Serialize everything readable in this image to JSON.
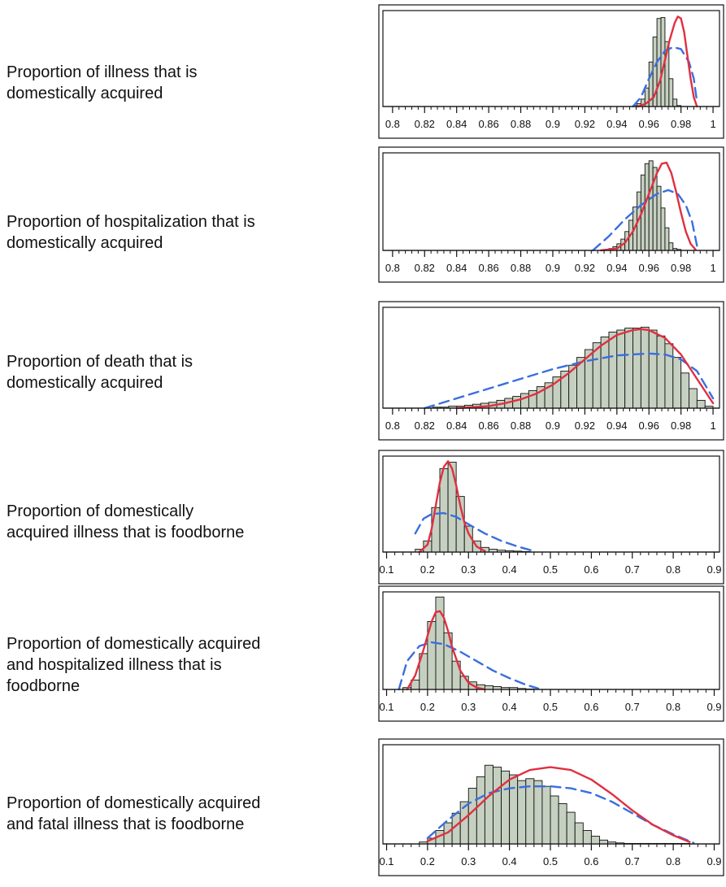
{
  "colors": {
    "bar_fill": "#c6d0c0",
    "bar_stroke": "#111111",
    "fit_curve": "#e03040",
    "dashed_curve": "#3a6ee0",
    "frame": "#111111"
  },
  "chart_data": [
    {
      "type": "bar",
      "label_lines": [
        "Proportion of illness that is",
        "domestically acquired"
      ],
      "xlim": [
        0.795,
        1.002
      ],
      "ymax": 1.0,
      "ticks": [
        "0.8",
        "0.82",
        "0.84",
        "0.86",
        "0.88",
        "0.9",
        "0.92",
        "0.94",
        "0.96",
        "0.98",
        "1"
      ],
      "tick_values": [
        0.8,
        0.82,
        0.84,
        0.86,
        0.88,
        0.9,
        0.92,
        0.94,
        0.96,
        0.98,
        1.0
      ],
      "bins": {
        "start": 0.95,
        "width": 0.0025,
        "heights": [
          0.01,
          0.03,
          0.08,
          0.2,
          0.48,
          0.75,
          0.95,
          0.96,
          0.7,
          0.3,
          0.08,
          0.01
        ]
      },
      "red_curve": {
        "x": [
          0.953,
          0.958,
          0.963,
          0.967,
          0.97,
          0.973,
          0.976,
          0.978,
          0.98,
          0.982,
          0.984,
          0.986,
          0.988,
          0.99
        ],
        "y": [
          0.0,
          0.03,
          0.1,
          0.28,
          0.5,
          0.72,
          0.9,
          0.97,
          0.95,
          0.8,
          0.55,
          0.3,
          0.1,
          0.0
        ]
      },
      "blue_curve": {
        "x": [
          0.95,
          0.955,
          0.96,
          0.965,
          0.97,
          0.975,
          0.98,
          0.985,
          0.988,
          0.99
        ],
        "y": [
          0.0,
          0.1,
          0.3,
          0.48,
          0.6,
          0.64,
          0.62,
          0.48,
          0.3,
          0.05
        ]
      }
    },
    {
      "type": "bar",
      "label_lines": [
        "Proportion of hospitalization that is",
        "domestically acquired"
      ],
      "xlim": [
        0.795,
        1.002
      ],
      "ymax": 1.0,
      "ticks": [
        "0.8",
        "0.82",
        "0.84",
        "0.86",
        "0.88",
        "0.9",
        "0.92",
        "0.94",
        "0.96",
        "0.98",
        "1"
      ],
      "tick_values": [
        0.8,
        0.82,
        0.84,
        0.86,
        0.88,
        0.9,
        0.92,
        0.94,
        0.96,
        0.98,
        1.0
      ],
      "bins": {
        "start": 0.93,
        "width": 0.0025,
        "heights": [
          0.005,
          0.01,
          0.02,
          0.04,
          0.07,
          0.12,
          0.2,
          0.32,
          0.46,
          0.62,
          0.8,
          0.92,
          0.95,
          0.88,
          0.68,
          0.45,
          0.24,
          0.08,
          0.02,
          0.01
        ]
      },
      "red_curve": {
        "x": [
          0.93,
          0.94,
          0.945,
          0.95,
          0.955,
          0.96,
          0.965,
          0.968,
          0.971,
          0.974,
          0.977,
          0.98,
          0.983,
          0.986,
          0.989
        ],
        "y": [
          0.0,
          0.02,
          0.08,
          0.2,
          0.38,
          0.6,
          0.82,
          0.92,
          0.93,
          0.82,
          0.62,
          0.4,
          0.2,
          0.07,
          0.01
        ]
      },
      "blue_curve": {
        "x": [
          0.925,
          0.935,
          0.945,
          0.955,
          0.965,
          0.972,
          0.978,
          0.983,
          0.987,
          0.99
        ],
        "y": [
          0.0,
          0.15,
          0.33,
          0.48,
          0.6,
          0.64,
          0.6,
          0.48,
          0.3,
          0.05
        ]
      }
    },
    {
      "type": "bar",
      "label_lines": [
        "Proportion of death that is",
        "domestically acquired"
      ],
      "xlim": [
        0.795,
        1.002
      ],
      "ymax": 1.0,
      "ticks": [
        "0.8",
        "0.82",
        "0.84",
        "0.86",
        "0.88",
        "0.9",
        "0.92",
        "0.94",
        "0.96",
        "0.98",
        "1"
      ],
      "tick_values": [
        0.8,
        0.82,
        0.84,
        0.86,
        0.88,
        0.9,
        0.92,
        0.94,
        0.96,
        0.98,
        1.0
      ],
      "bins": {
        "start": 0.825,
        "width": 0.005,
        "heights": [
          0.01,
          0.01,
          0.02,
          0.02,
          0.03,
          0.04,
          0.05,
          0.06,
          0.08,
          0.1,
          0.12,
          0.15,
          0.18,
          0.22,
          0.26,
          0.32,
          0.38,
          0.44,
          0.52,
          0.6,
          0.67,
          0.73,
          0.78,
          0.8,
          0.82,
          0.82,
          0.83,
          0.8,
          0.74,
          0.66,
          0.52,
          0.36,
          0.2,
          0.08,
          0.02
        ]
      },
      "red_curve": {
        "x": [
          0.84,
          0.86,
          0.87,
          0.88,
          0.89,
          0.9,
          0.91,
          0.92,
          0.93,
          0.94,
          0.95,
          0.955,
          0.96,
          0.97,
          0.98,
          0.99,
          1.0
        ],
        "y": [
          0.0,
          0.02,
          0.05,
          0.09,
          0.15,
          0.24,
          0.36,
          0.5,
          0.64,
          0.75,
          0.8,
          0.81,
          0.8,
          0.72,
          0.55,
          0.3,
          0.05
        ]
      },
      "blue_curve": {
        "x": [
          0.82,
          0.84,
          0.86,
          0.88,
          0.9,
          0.92,
          0.94,
          0.96,
          0.97,
          0.98,
          0.99,
          1.0
        ],
        "y": [
          0.0,
          0.1,
          0.2,
          0.3,
          0.4,
          0.48,
          0.54,
          0.56,
          0.55,
          0.5,
          0.38,
          0.1
        ]
      }
    },
    {
      "type": "bar",
      "label_lines": [
        "Proportion of domestically",
        "acquired illness that is foodborne"
      ],
      "xlim": [
        0.095,
        0.905
      ],
      "ymax": 1.0,
      "ticks": [
        "0.1",
        "0.2",
        "0.3",
        "0.4",
        "0.5",
        "0.6",
        "0.7",
        "0.8",
        "0.9"
      ],
      "tick_values": [
        0.1,
        0.2,
        0.3,
        0.4,
        0.5,
        0.6,
        0.7,
        0.8,
        0.9
      ],
      "bins": {
        "start": 0.17,
        "width": 0.02,
        "heights": [
          0.03,
          0.12,
          0.48,
          0.9,
          0.97,
          0.6,
          0.28,
          0.12,
          0.05,
          0.03,
          0.02,
          0.015,
          0.01,
          0.005
        ]
      },
      "red_curve": {
        "x": [
          0.18,
          0.2,
          0.21,
          0.22,
          0.23,
          0.24,
          0.25,
          0.26,
          0.27,
          0.28,
          0.29,
          0.3,
          0.32,
          0.34
        ],
        "y": [
          0.0,
          0.08,
          0.25,
          0.5,
          0.75,
          0.92,
          0.98,
          0.9,
          0.72,
          0.5,
          0.32,
          0.2,
          0.06,
          0.01
        ]
      },
      "blue_curve": {
        "x": [
          0.17,
          0.19,
          0.21,
          0.24,
          0.27,
          0.3,
          0.34,
          0.38,
          0.42,
          0.46
        ],
        "y": [
          0.2,
          0.36,
          0.41,
          0.42,
          0.38,
          0.3,
          0.2,
          0.12,
          0.06,
          0.01
        ]
      }
    },
    {
      "type": "bar",
      "label_lines": [
        "Proportion of domestically acquired",
        "and hospitalized illness that is",
        "foodborne"
      ],
      "xlim": [
        0.095,
        0.905
      ],
      "ymax": 1.0,
      "ticks": [
        "0.1",
        "0.2",
        "0.3",
        "0.4",
        "0.5",
        "0.6",
        "0.7",
        "0.8",
        "0.9"
      ],
      "tick_values": [
        0.1,
        0.2,
        0.3,
        0.4,
        0.5,
        0.6,
        0.7,
        0.8,
        0.9
      ],
      "bins": {
        "start": 0.14,
        "width": 0.02,
        "heights": [
          0.02,
          0.1,
          0.38,
          0.72,
          0.98,
          0.6,
          0.3,
          0.14,
          0.08,
          0.05,
          0.04,
          0.03,
          0.02,
          0.02,
          0.01,
          0.005
        ]
      },
      "red_curve": {
        "x": [
          0.15,
          0.17,
          0.19,
          0.21,
          0.22,
          0.23,
          0.24,
          0.25,
          0.26,
          0.28,
          0.3,
          0.32,
          0.34
        ],
        "y": [
          0.0,
          0.15,
          0.42,
          0.72,
          0.82,
          0.83,
          0.76,
          0.62,
          0.45,
          0.2,
          0.07,
          0.02,
          0.0
        ]
      },
      "blue_curve": {
        "x": [
          0.13,
          0.15,
          0.18,
          0.21,
          0.24,
          0.28,
          0.32,
          0.36,
          0.4,
          0.44,
          0.47
        ],
        "y": [
          0.0,
          0.3,
          0.46,
          0.5,
          0.48,
          0.4,
          0.3,
          0.2,
          0.12,
          0.05,
          0.01
        ]
      }
    },
    {
      "type": "bar",
      "label_lines": [
        "Proportion of domestically acquired",
        "and fatal illness that is foodborne"
      ],
      "xlim": [
        0.095,
        0.905
      ],
      "ymax": 1.0,
      "ticks": [
        "0.1",
        "0.2",
        "0.3",
        "0.4",
        "0.5",
        "0.6",
        "0.7",
        "0.8",
        "0.9"
      ],
      "tick_values": [
        0.1,
        0.2,
        0.3,
        0.4,
        0.5,
        0.6,
        0.7,
        0.8,
        0.9
      ],
      "bins": {
        "start": 0.18,
        "width": 0.02,
        "heights": [
          0.02,
          0.06,
          0.14,
          0.22,
          0.32,
          0.44,
          0.58,
          0.7,
          0.82,
          0.8,
          0.76,
          0.72,
          0.66,
          0.68,
          0.66,
          0.6,
          0.5,
          0.42,
          0.33,
          0.22,
          0.14,
          0.08,
          0.04,
          0.02,
          0.01,
          0.005,
          0.005,
          0.005,
          0.005,
          0.005,
          0.005,
          0.005,
          0.005
        ]
      },
      "red_curve": {
        "x": [
          0.2,
          0.25,
          0.3,
          0.35,
          0.4,
          0.45,
          0.5,
          0.55,
          0.6,
          0.65,
          0.7,
          0.75,
          0.8,
          0.84
        ],
        "y": [
          0.03,
          0.12,
          0.3,
          0.5,
          0.67,
          0.77,
          0.8,
          0.77,
          0.67,
          0.52,
          0.35,
          0.2,
          0.09,
          0.02
        ]
      },
      "blue_curve": {
        "x": [
          0.2,
          0.25,
          0.3,
          0.35,
          0.4,
          0.45,
          0.5,
          0.55,
          0.6,
          0.65,
          0.7,
          0.75,
          0.8,
          0.85
        ],
        "y": [
          0.06,
          0.25,
          0.42,
          0.53,
          0.58,
          0.6,
          0.6,
          0.58,
          0.53,
          0.44,
          0.32,
          0.2,
          0.1,
          0.01
        ]
      }
    }
  ]
}
